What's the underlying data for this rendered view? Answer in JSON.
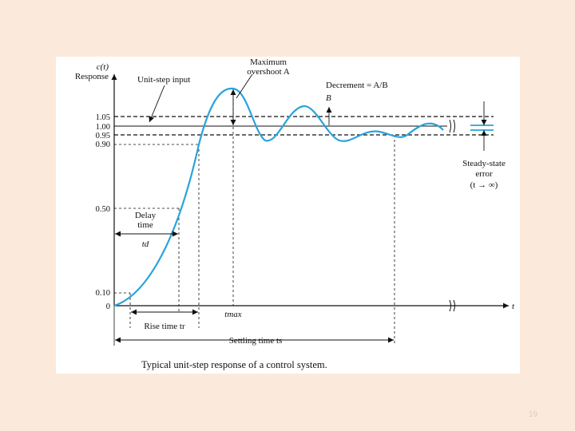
{
  "figure": {
    "caption": "Typical unit-step response of a control system.",
    "y_axis_label_line1": "c(t)",
    "y_axis_label_line2": "Response",
    "x_axis_label": "t",
    "ticks": {
      "t105": "1.05",
      "t100": "1.00",
      "t095": "0.95",
      "t090": "0.90",
      "t050": "0.50",
      "t010": "0.10",
      "t0": "0"
    },
    "annotations": {
      "unit_step_input": "Unit-step input",
      "max_overshoot_line1": "Maximum",
      "max_overshoot_line2": "overshoot A",
      "decrement": "Decrement = A/B",
      "b_label": "B",
      "delay_time_line1": "Delay",
      "delay_time_line2": "time",
      "td": "td",
      "tmax": "tmax",
      "rise_time": "Rise time tr",
      "settling_time": "Settling time ts",
      "ss_error_line1": "Steady-state",
      "ss_error_line2": "error",
      "ss_error_line3": "(t → ∞)"
    },
    "colors": {
      "response_curve": "#2aa3dc",
      "page_background": "#fbeadb"
    }
  },
  "slide_number": "19"
}
